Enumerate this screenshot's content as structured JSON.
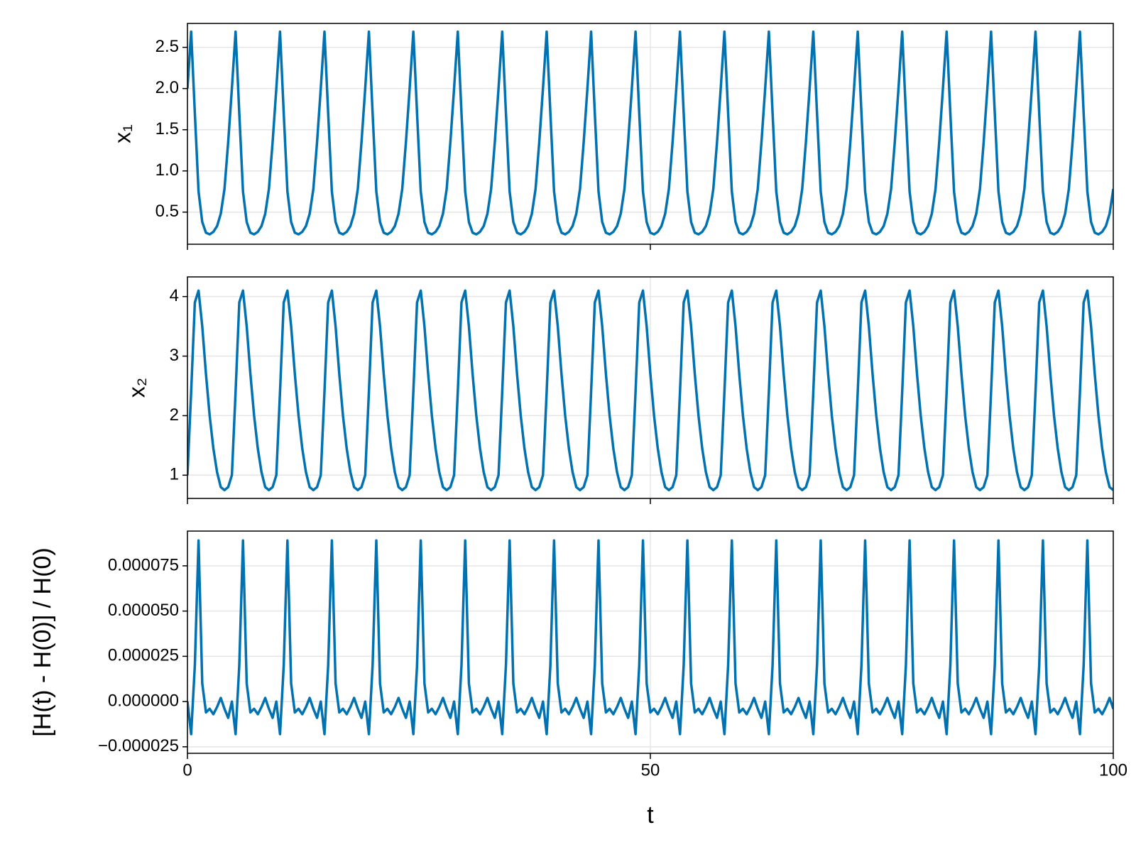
{
  "chart_data": {
    "type": "line",
    "xlabel": "t",
    "xlim": [
      0,
      100
    ],
    "xticks": [
      0,
      50,
      100
    ],
    "grid": true,
    "x": [
      0,
      0.4,
      0.8,
      1.2,
      1.6,
      2,
      2.4,
      2.8,
      3.2,
      3.6,
      4,
      4.4,
      4.8,
      5.2,
      5.6,
      6,
      6.4,
      6.8,
      7.2,
      7.6,
      8,
      8.4,
      8.8,
      9.2,
      9.6,
      10,
      10.4,
      10.8,
      11.2,
      11.6,
      12,
      12.4,
      12.8,
      13.2,
      13.6,
      14,
      14.4,
      14.8,
      15.2,
      15.6,
      16,
      16.4,
      16.8,
      17.2,
      17.6,
      18,
      18.4,
      18.8,
      19.2,
      19.6,
      20,
      20.4,
      20.8,
      21.2,
      21.6,
      22,
      22.4,
      22.8,
      23.2,
      23.6,
      24,
      24.4,
      24.8,
      25.2,
      25.6,
      26,
      26.4,
      26.8,
      27.2,
      27.6,
      28,
      28.4,
      28.8,
      29.2,
      29.6,
      30,
      30.4,
      30.8,
      31.2,
      31.6,
      32,
      32.4,
      32.8,
      33.2,
      33.6,
      34,
      34.4,
      34.8,
      35.2,
      35.6,
      36,
      36.4,
      36.8,
      37.2,
      37.6,
      38,
      38.4,
      38.8,
      39.2,
      39.6,
      40,
      40.4,
      40.8,
      41.2,
      41.6,
      42,
      42.4,
      42.8,
      43.2,
      43.6,
      44,
      44.4,
      44.8,
      45.2,
      45.6,
      46,
      46.4,
      46.8,
      47.2,
      47.6,
      48,
      48.4,
      48.8,
      49.2,
      49.6,
      50,
      50.4,
      50.8,
      51.2,
      51.6,
      52,
      52.4,
      52.8,
      53.2,
      53.6,
      54,
      54.4,
      54.8,
      55.2,
      55.6,
      56,
      56.4,
      56.8,
      57.2,
      57.6,
      58,
      58.4,
      58.8,
      59.2,
      59.6,
      60,
      60.4,
      60.8,
      61.2,
      61.6,
      62,
      62.4,
      62.8,
      63.2,
      63.6,
      64,
      64.4,
      64.8,
      65.2,
      65.6,
      66,
      66.4,
      66.8,
      67.2,
      67.6,
      68,
      68.4,
      68.8,
      69.2,
      69.6,
      70,
      70.4,
      70.8,
      71.2,
      71.6,
      72,
      72.4,
      72.8,
      73.2,
      73.6,
      74,
      74.4,
      74.8,
      75.2,
      75.6,
      76,
      76.4,
      76.8,
      77.2,
      77.6,
      78,
      78.4,
      78.8,
      79.2,
      79.6,
      80,
      80.4,
      80.8,
      81.2,
      81.6,
      82,
      82.4,
      82.8,
      83.2,
      83.6,
      84,
      84.4,
      84.8,
      85.2,
      85.6,
      86,
      86.4,
      86.8,
      87.2,
      87.6,
      88,
      88.4,
      88.8,
      89.2,
      89.6,
      90,
      90.4,
      90.8,
      91.2,
      91.6,
      92,
      92.4,
      92.8,
      93.2,
      93.6,
      94,
      94.4,
      94.8,
      95.2,
      95.6,
      96,
      96.4,
      96.8,
      97.2,
      97.6,
      98,
      98.4,
      98.8,
      99.2,
      99.6,
      100
    ],
    "panels": [
      {
        "ylabel": "x₁",
        "ylim": [
          0.11,
          2.79
        ],
        "yticks": [
          0.5,
          {
            "value": 1,
            "label": "1.0"
          },
          1.5,
          {
            "value": 2,
            "label": "2.0"
          },
          2.5
        ],
        "series": [
          {
            "color": "#0072b2",
            "values": [
              2.0,
              2.69,
              1.7,
              0.75,
              0.38,
              0.25,
              0.23,
              0.26,
              0.33,
              0.48,
              0.78,
              1.35,
              2.0,
              2.69,
              1.7,
              0.75,
              0.38,
              0.25,
              0.23,
              0.26,
              0.33,
              0.48,
              0.78,
              1.35,
              2.0,
              2.69,
              1.7,
              0.75,
              0.38,
              0.25,
              0.23,
              0.26,
              0.33,
              0.48,
              0.78,
              1.35,
              2.0,
              2.69,
              1.7,
              0.75,
              0.38,
              0.25,
              0.23,
              0.26,
              0.33,
              0.48,
              0.78,
              1.35,
              2.0,
              2.69,
              1.7,
              0.75,
              0.38,
              0.25,
              0.23,
              0.26,
              0.33,
              0.48,
              0.78,
              1.35,
              2.0,
              2.69,
              1.7,
              0.75,
              0.38,
              0.25,
              0.23,
              0.26,
              0.33,
              0.48,
              0.78,
              1.35,
              2.0,
              2.69,
              1.7,
              0.75,
              0.38,
              0.25,
              0.23,
              0.26,
              0.33,
              0.48,
              0.78,
              1.35,
              2.0,
              2.69,
              1.7,
              0.75,
              0.38,
              0.25,
              0.23,
              0.26,
              0.33,
              0.48,
              0.78,
              1.35,
              2.0,
              2.69,
              1.7,
              0.75,
              0.38,
              0.25,
              0.23,
              0.26,
              0.33,
              0.48,
              0.78,
              1.35,
              2.0,
              2.69,
              1.7,
              0.75,
              0.38,
              0.25,
              0.23,
              0.26,
              0.33,
              0.48,
              0.78,
              1.35,
              2.0,
              2.69,
              1.7,
              0.75,
              0.38,
              0.25,
              0.23,
              0.26,
              0.33,
              0.48,
              0.78,
              1.35,
              2.0,
              2.69,
              1.7,
              0.75,
              0.38,
              0.25,
              0.23,
              0.26,
              0.33,
              0.48,
              0.78,
              1.35,
              2.0,
              2.69,
              1.7,
              0.75,
              0.38,
              0.25,
              0.23,
              0.26,
              0.33,
              0.48,
              0.78,
              1.35,
              2.0,
              2.69,
              1.7,
              0.75,
              0.38,
              0.25,
              0.23,
              0.26,
              0.33,
              0.48,
              0.78,
              1.35,
              2.0,
              2.69,
              1.7,
              0.75,
              0.38,
              0.25,
              0.23,
              0.26,
              0.33,
              0.48,
              0.78,
              1.35,
              2.0,
              2.69,
              1.7,
              0.75,
              0.38,
              0.25,
              0.23,
              0.26,
              0.33,
              0.48,
              0.78,
              1.35,
              2.0,
              2.69,
              1.7,
              0.75,
              0.38,
              0.25,
              0.23,
              0.26,
              0.33,
              0.48,
              0.78,
              1.35,
              2.0,
              2.69,
              1.7,
              0.75,
              0.38,
              0.25,
              0.23,
              0.26,
              0.33,
              0.48,
              0.78,
              1.35,
              2.0,
              2.69,
              1.7,
              0.75,
              0.38,
              0.25,
              0.23,
              0.26,
              0.33,
              0.48,
              0.78,
              1.35,
              2.0,
              2.69,
              1.7,
              0.75,
              0.38,
              0.25,
              0.23,
              0.26,
              0.33,
              0.48,
              0.78,
              1.35,
              2.0,
              2.69,
              1.7,
              0.75,
              0.38,
              0.25,
              0.23,
              0.26,
              0.33,
              0.48,
              0.78
            ]
          }
        ]
      },
      {
        "ylabel": "x₂",
        "ylim": [
          0.61,
          4.33
        ],
        "yticks": [
          1,
          2,
          3,
          4
        ],
        "series": [
          {
            "color": "#0072b2",
            "values": [
              1.0,
              2.4,
              3.9,
              4.1,
              3.5,
              2.7,
              2.0,
              1.45,
              1.05,
              0.8,
              0.75,
              0.8,
              1.0,
              2.4,
              3.9,
              4.1,
              3.5,
              2.7,
              2.0,
              1.45,
              1.05,
              0.8,
              0.75,
              0.8,
              1.0,
              2.4,
              3.9,
              4.1,
              3.5,
              2.7,
              2.0,
              1.45,
              1.05,
              0.8,
              0.75,
              0.8,
              1.0,
              2.4,
              3.9,
              4.1,
              3.5,
              2.7,
              2.0,
              1.45,
              1.05,
              0.8,
              0.75,
              0.8,
              1.0,
              2.4,
              3.9,
              4.1,
              3.5,
              2.7,
              2.0,
              1.45,
              1.05,
              0.8,
              0.75,
              0.8,
              1.0,
              2.4,
              3.9,
              4.1,
              3.5,
              2.7,
              2.0,
              1.45,
              1.05,
              0.8,
              0.75,
              0.8,
              1.0,
              2.4,
              3.9,
              4.1,
              3.5,
              2.7,
              2.0,
              1.45,
              1.05,
              0.8,
              0.75,
              0.8,
              1.0,
              2.4,
              3.9,
              4.1,
              3.5,
              2.7,
              2.0,
              1.45,
              1.05,
              0.8,
              0.75,
              0.8,
              1.0,
              2.4,
              3.9,
              4.1,
              3.5,
              2.7,
              2.0,
              1.45,
              1.05,
              0.8,
              0.75,
              0.8,
              1.0,
              2.4,
              3.9,
              4.1,
              3.5,
              2.7,
              2.0,
              1.45,
              1.05,
              0.8,
              0.75,
              0.8,
              1.0,
              2.4,
              3.9,
              4.1,
              3.5,
              2.7,
              2.0,
              1.45,
              1.05,
              0.8,
              0.75,
              0.8,
              1.0,
              2.4,
              3.9,
              4.1,
              3.5,
              2.7,
              2.0,
              1.45,
              1.05,
              0.8,
              0.75,
              0.8,
              1.0,
              2.4,
              3.9,
              4.1,
              3.5,
              2.7,
              2.0,
              1.45,
              1.05,
              0.8,
              0.75,
              0.8,
              1.0,
              2.4,
              3.9,
              4.1,
              3.5,
              2.7,
              2.0,
              1.45,
              1.05,
              0.8,
              0.75,
              0.8,
              1.0,
              2.4,
              3.9,
              4.1,
              3.5,
              2.7,
              2.0,
              1.45,
              1.05,
              0.8,
              0.75,
              0.8,
              1.0,
              2.4,
              3.9,
              4.1,
              3.5,
              2.7,
              2.0,
              1.45,
              1.05,
              0.8,
              0.75,
              0.8,
              1.0,
              2.4,
              3.9,
              4.1,
              3.5,
              2.7,
              2.0,
              1.45,
              1.05,
              0.8,
              0.75,
              0.8,
              1.0,
              2.4,
              3.9,
              4.1,
              3.5,
              2.7,
              2.0,
              1.45,
              1.05,
              0.8,
              0.75,
              0.8,
              1.0,
              2.4,
              3.9,
              4.1,
              3.5,
              2.7,
              2.0,
              1.45,
              1.05,
              0.8,
              0.75,
              0.8,
              1.0,
              2.4,
              3.9,
              4.1,
              3.5,
              2.7,
              2.0,
              1.45,
              1.05,
              0.8,
              0.75,
              0.8,
              1.0,
              2.4,
              3.9,
              4.1,
              3.5,
              2.7,
              2.0,
              1.45,
              1.05,
              0.8,
              0.75
            ]
          }
        ]
      },
      {
        "ylabel": "[H(t) - H(0)] / H(0)",
        "ylim": [
          -2.86e-05,
          9.42e-05
        ],
        "yticks": [
          {
            "value": -2.5e-05,
            "label": "−0.000025"
          },
          {
            "value": 0,
            "label": "0.000000"
          },
          2.5e-05,
          {
            "value": 5e-05,
            "label": "0.000050"
          },
          7.5e-05
        ],
        "series": [
          {
            "color": "#0072b2",
            "values": [
              0,
              -1.8e-05,
              2e-05,
              8.9e-05,
              1e-05,
              -6e-06,
              -4e-06,
              -7e-06,
              -3e-06,
              2e-06,
              -4e-06,
              -9e-06,
              0,
              -1.8e-05,
              2e-05,
              8.9e-05,
              1e-05,
              -6e-06,
              -4e-06,
              -7e-06,
              -3e-06,
              2e-06,
              -4e-06,
              -9e-06,
              0,
              -1.8e-05,
              2e-05,
              8.9e-05,
              1e-05,
              -6e-06,
              -4e-06,
              -7e-06,
              -3e-06,
              2e-06,
              -4e-06,
              -9e-06,
              0,
              -1.8e-05,
              2e-05,
              8.9e-05,
              1e-05,
              -6e-06,
              -4e-06,
              -7e-06,
              -3e-06,
              2e-06,
              -4e-06,
              -9e-06,
              0,
              -1.8e-05,
              2e-05,
              8.9e-05,
              1e-05,
              -6e-06,
              -4e-06,
              -7e-06,
              -3e-06,
              2e-06,
              -4e-06,
              -9e-06,
              0,
              -1.8e-05,
              2e-05,
              8.9e-05,
              1e-05,
              -6e-06,
              -4e-06,
              -7e-06,
              -3e-06,
              2e-06,
              -4e-06,
              -9e-06,
              0,
              -1.8e-05,
              2e-05,
              8.9e-05,
              1e-05,
              -6e-06,
              -4e-06,
              -7e-06,
              -3e-06,
              2e-06,
              -4e-06,
              -9e-06,
              0,
              -1.8e-05,
              2e-05,
              8.9e-05,
              1e-05,
              -6e-06,
              -4e-06,
              -7e-06,
              -3e-06,
              2e-06,
              -4e-06,
              -9e-06,
              0,
              -1.8e-05,
              2e-05,
              8.9e-05,
              1e-05,
              -6e-06,
              -4e-06,
              -7e-06,
              -3e-06,
              2e-06,
              -4e-06,
              -9e-06,
              0,
              -1.8e-05,
              2e-05,
              8.9e-05,
              1e-05,
              -6e-06,
              -4e-06,
              -7e-06,
              -3e-06,
              2e-06,
              -4e-06,
              -9e-06,
              0,
              -1.8e-05,
              2e-05,
              8.9e-05,
              1e-05,
              -6e-06,
              -4e-06,
              -7e-06,
              -3e-06,
              2e-06,
              -4e-06,
              -9e-06,
              0,
              -1.8e-05,
              2e-05,
              8.9e-05,
              1e-05,
              -6e-06,
              -4e-06,
              -7e-06,
              -3e-06,
              2e-06,
              -4e-06,
              -9e-06,
              0,
              -1.8e-05,
              2e-05,
              8.9e-05,
              1e-05,
              -6e-06,
              -4e-06,
              -7e-06,
              -3e-06,
              2e-06,
              -4e-06,
              -9e-06,
              0,
              -1.8e-05,
              2e-05,
              8.9e-05,
              1e-05,
              -6e-06,
              -4e-06,
              -7e-06,
              -3e-06,
              2e-06,
              -4e-06,
              -9e-06,
              0,
              -1.8e-05,
              2e-05,
              8.9e-05,
              1e-05,
              -6e-06,
              -4e-06,
              -7e-06,
              -3e-06,
              2e-06,
              -4e-06,
              -9e-06,
              0,
              -1.8e-05,
              2e-05,
              8.9e-05,
              1e-05,
              -6e-06,
              -4e-06,
              -7e-06,
              -3e-06,
              2e-06,
              -4e-06,
              -9e-06,
              0,
              -1.8e-05,
              2e-05,
              8.9e-05,
              1e-05,
              -6e-06,
              -4e-06,
              -7e-06,
              -3e-06,
              2e-06,
              -4e-06,
              -9e-06,
              0,
              -1.8e-05,
              2e-05,
              8.9e-05,
              1e-05,
              -6e-06,
              -4e-06,
              -7e-06,
              -3e-06,
              2e-06,
              -4e-06,
              -9e-06,
              0,
              -1.8e-05,
              2e-05,
              8.9e-05,
              1e-05,
              -6e-06,
              -4e-06,
              -7e-06,
              -3e-06,
              2e-06,
              -4e-06,
              -9e-06,
              0,
              -1.8e-05,
              2e-05,
              8.9e-05,
              1e-05,
              -6e-06,
              -4e-06,
              -7e-06,
              -3e-06,
              2e-06,
              -4e-06,
              -9e-06,
              0,
              -1.8e-05,
              2e-05,
              8.9e-05,
              1e-05,
              -6e-06,
              -4e-06,
              -7e-06,
              -3e-06,
              2e-06,
              -4e-06
            ]
          }
        ]
      }
    ]
  }
}
